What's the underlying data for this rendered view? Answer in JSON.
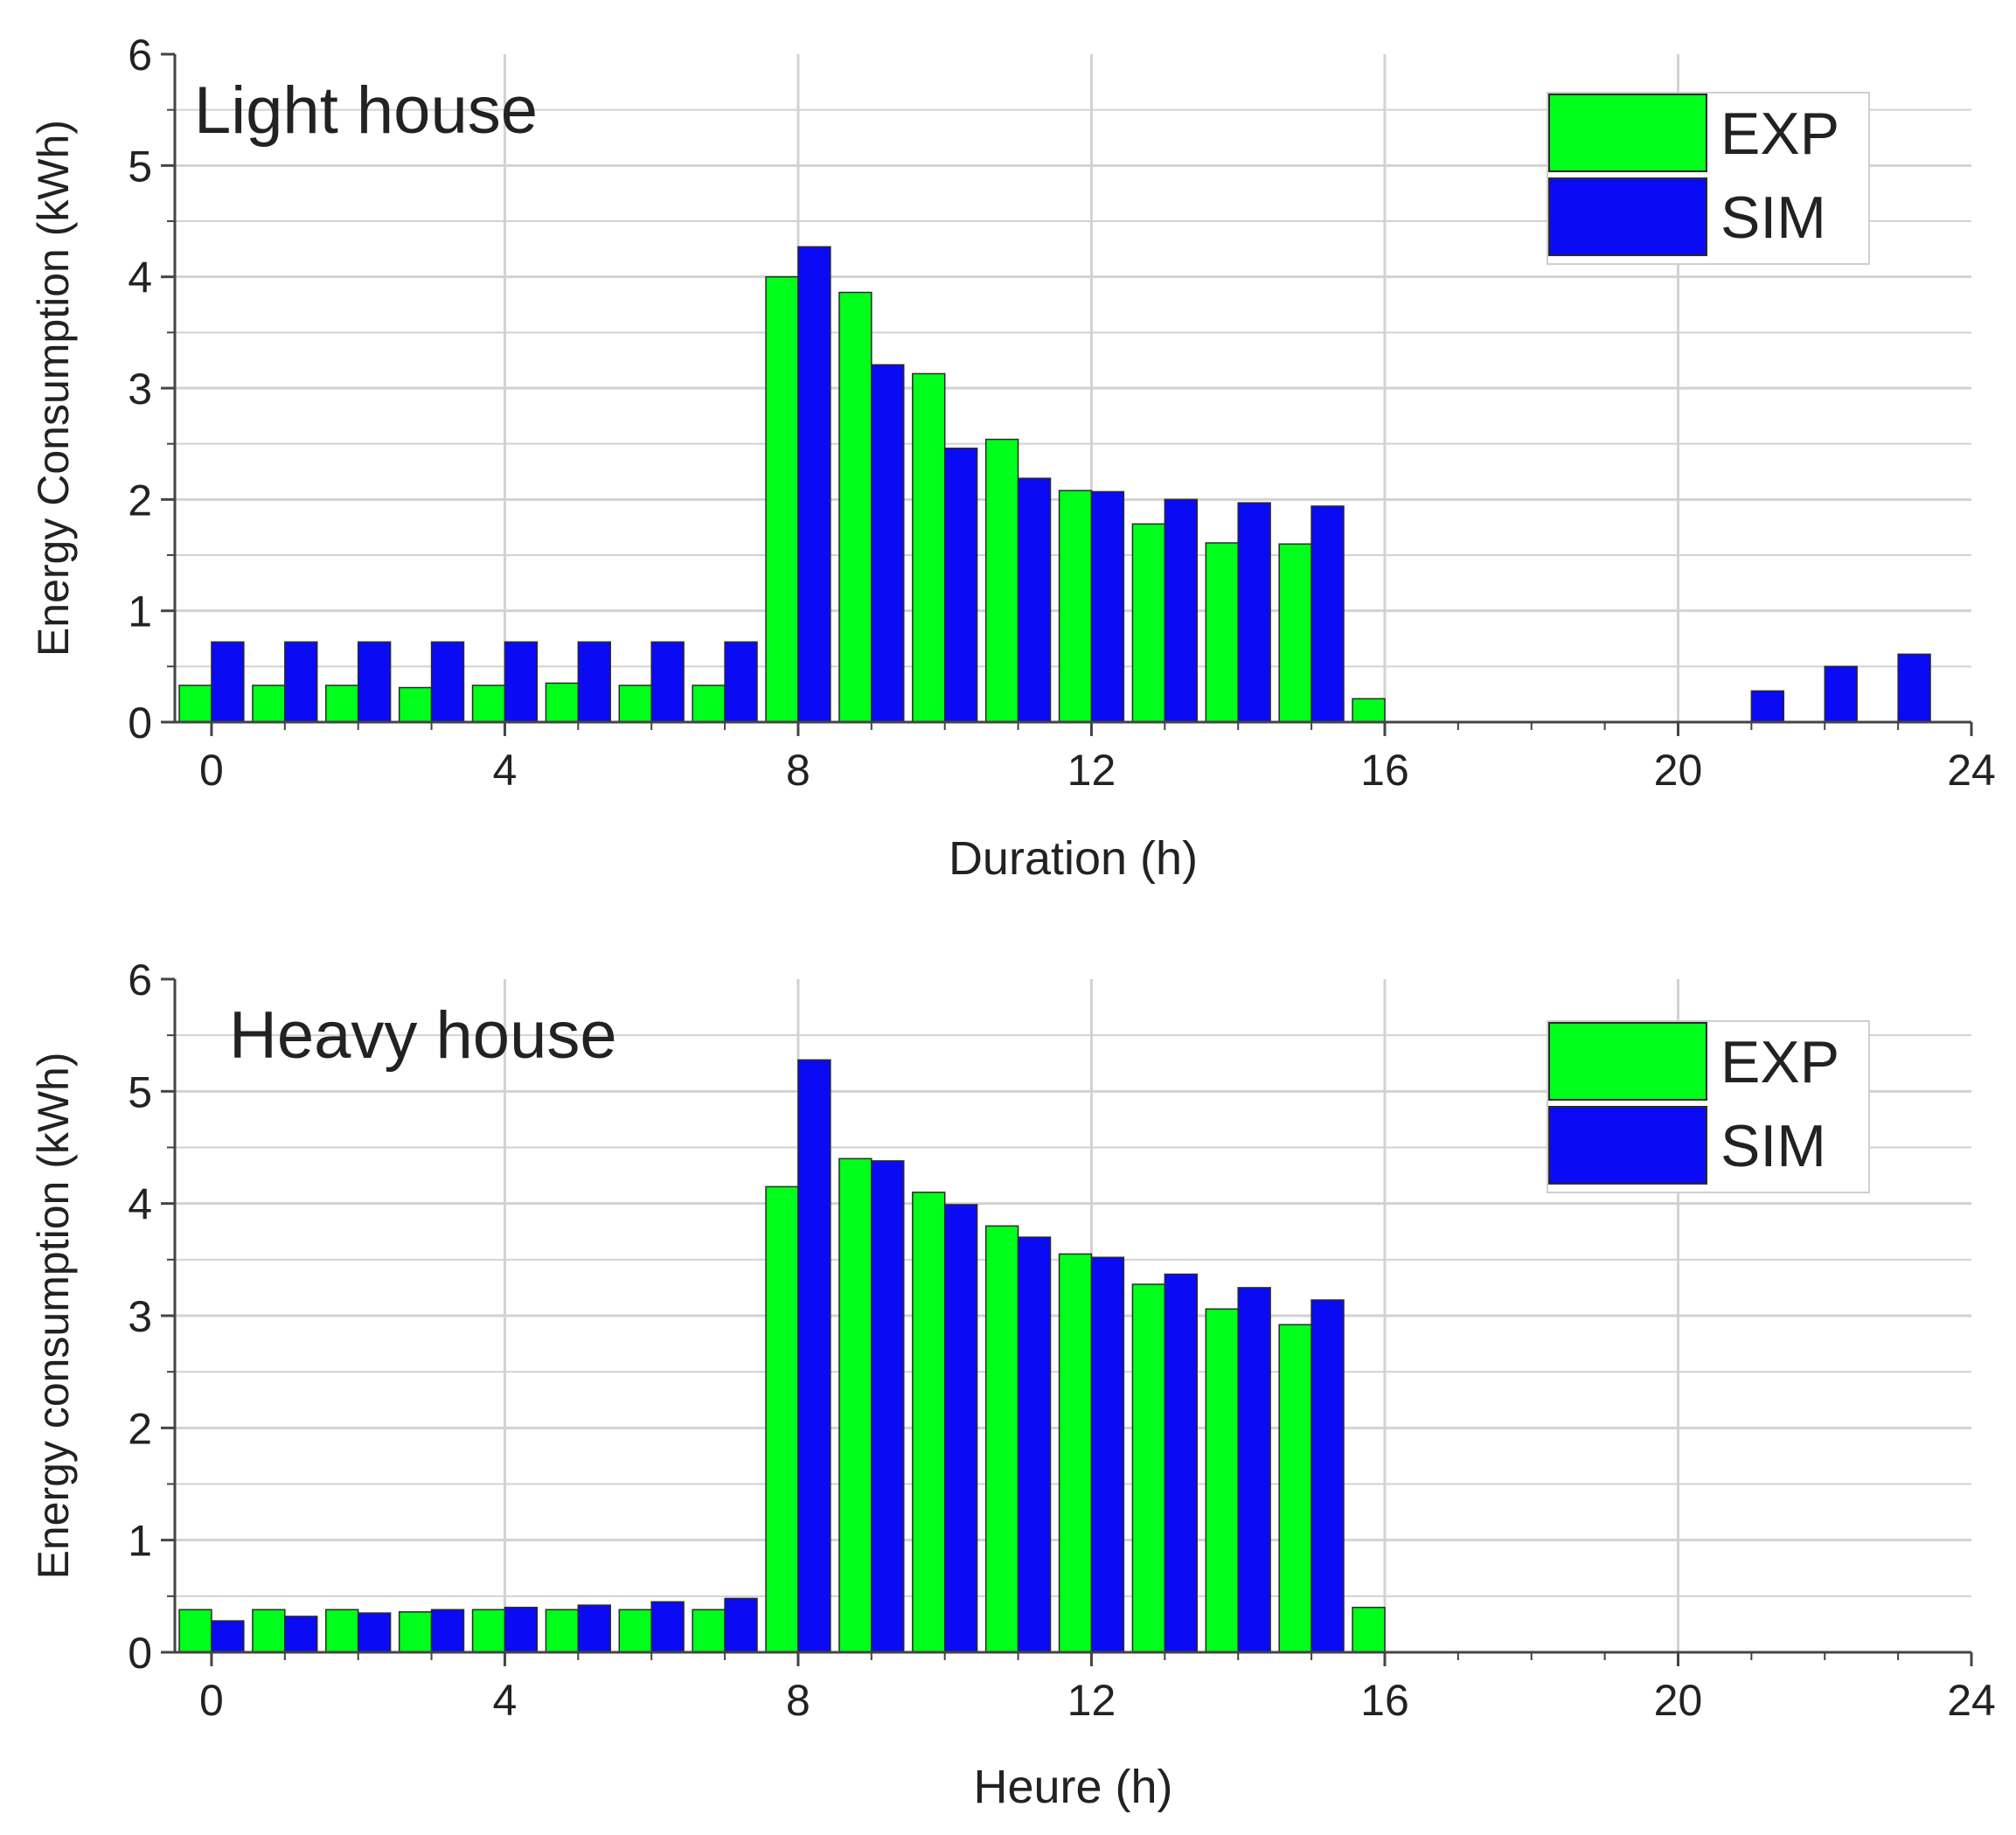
{
  "colors": {
    "exp": "#00ff1a",
    "sim": "#0a0af5",
    "grid": "#d2d2d2",
    "axis": "#444444"
  },
  "chart_data": [
    {
      "type": "bar",
      "title": "Light house",
      "xlabel": "Duration (h)",
      "ylabel": "Energy Consumption (kWh)",
      "xlim": [
        -0.5,
        24
      ],
      "ylim": [
        0,
        6
      ],
      "xticks": [
        "0",
        "4",
        "8",
        "12",
        "16",
        "20",
        "24"
      ],
      "yticks": [
        "0",
        "1",
        "2",
        "3",
        "4",
        "5",
        "6"
      ],
      "legend": {
        "position": "top-right",
        "entries": [
          "EXP",
          "SIM"
        ]
      },
      "hours": [
        0,
        1,
        2,
        3,
        4,
        5,
        6,
        7,
        8,
        9,
        10,
        11,
        12,
        13,
        14,
        15,
        16,
        17,
        18,
        19,
        20,
        21,
        22,
        23
      ],
      "series": [
        {
          "name": "EXP",
          "values": [
            0.33,
            0.33,
            0.33,
            0.31,
            0.33,
            0.35,
            0.33,
            0.33,
            4.0,
            3.86,
            3.13,
            2.54,
            2.08,
            1.78,
            1.61,
            1.6,
            0.21,
            0,
            0,
            0,
            0,
            0,
            0,
            0
          ]
        },
        {
          "name": "SIM",
          "values": [
            0.72,
            0.72,
            0.72,
            0.72,
            0.72,
            0.72,
            0.72,
            0.72,
            4.27,
            3.21,
            2.46,
            2.19,
            2.07,
            2.0,
            1.97,
            1.94,
            0,
            0,
            0,
            0,
            0,
            0.28,
            0.5,
            0.61
          ]
        }
      ]
    },
    {
      "type": "bar",
      "title": "Heavy house",
      "xlabel": "Heure (h)",
      "ylabel": "Energy consumption (kWh)",
      "xlim": [
        -0.5,
        24
      ],
      "ylim": [
        0,
        6
      ],
      "xticks": [
        "0",
        "4",
        "8",
        "12",
        "16",
        "20",
        "24"
      ],
      "yticks": [
        "0",
        "1",
        "2",
        "3",
        "4",
        "5",
        "6"
      ],
      "legend": {
        "position": "top-right",
        "entries": [
          "EXP",
          "SIM"
        ]
      },
      "hours": [
        0,
        1,
        2,
        3,
        4,
        5,
        6,
        7,
        8,
        9,
        10,
        11,
        12,
        13,
        14,
        15,
        16,
        17,
        18,
        19,
        20,
        21,
        22,
        23
      ],
      "series": [
        {
          "name": "EXP",
          "values": [
            0.38,
            0.38,
            0.38,
            0.36,
            0.38,
            0.38,
            0.38,
            0.38,
            4.15,
            4.4,
            4.1,
            3.8,
            3.55,
            3.28,
            3.06,
            2.92,
            0.4,
            0,
            0,
            0,
            0,
            0,
            0,
            0
          ]
        },
        {
          "name": "SIM",
          "values": [
            0.28,
            0.32,
            0.35,
            0.38,
            0.4,
            0.42,
            0.45,
            0.48,
            5.28,
            4.38,
            3.99,
            3.7,
            3.52,
            3.37,
            3.25,
            3.14,
            0,
            0,
            0,
            0,
            0,
            0,
            0,
            0
          ]
        }
      ]
    }
  ]
}
